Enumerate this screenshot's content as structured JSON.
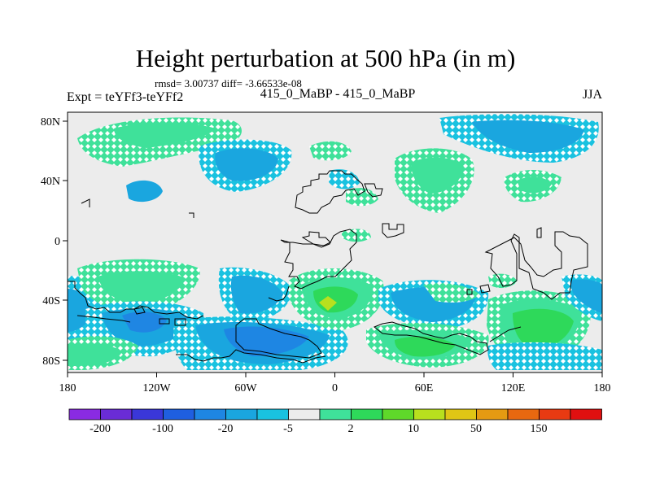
{
  "header": {
    "title": "Height perturbation at 500 hPa (in m)",
    "stats": "rmsd= 3.00737 diff= -3.66533e-08",
    "expt": "Expt = teYFf3-teYFf2",
    "subtitle": "415_0_MaBP - 415_0_MaBP",
    "season": "JJA"
  },
  "map": {
    "x_ticks": [
      "180",
      "120W",
      "60W",
      "0",
      "60E",
      "120E",
      "180"
    ],
    "y_ticks": [
      "80N",
      "40N",
      "0",
      "40S",
      "80S"
    ]
  },
  "colorbar": {
    "colors": [
      "#8a2be2",
      "#6a2cd6",
      "#3a37d9",
      "#1f5fe0",
      "#1e86e3",
      "#1aa6df",
      "#19c2e0",
      "#ececec",
      "#3fe19a",
      "#2ed95a",
      "#5fd82a",
      "#b8e01e",
      "#e0c615",
      "#e59a12",
      "#e86810",
      "#e83a12",
      "#e01010"
    ],
    "labels": [
      "-200",
      "-100",
      "-20",
      "-5",
      "2",
      "10",
      "50",
      "150"
    ]
  }
}
